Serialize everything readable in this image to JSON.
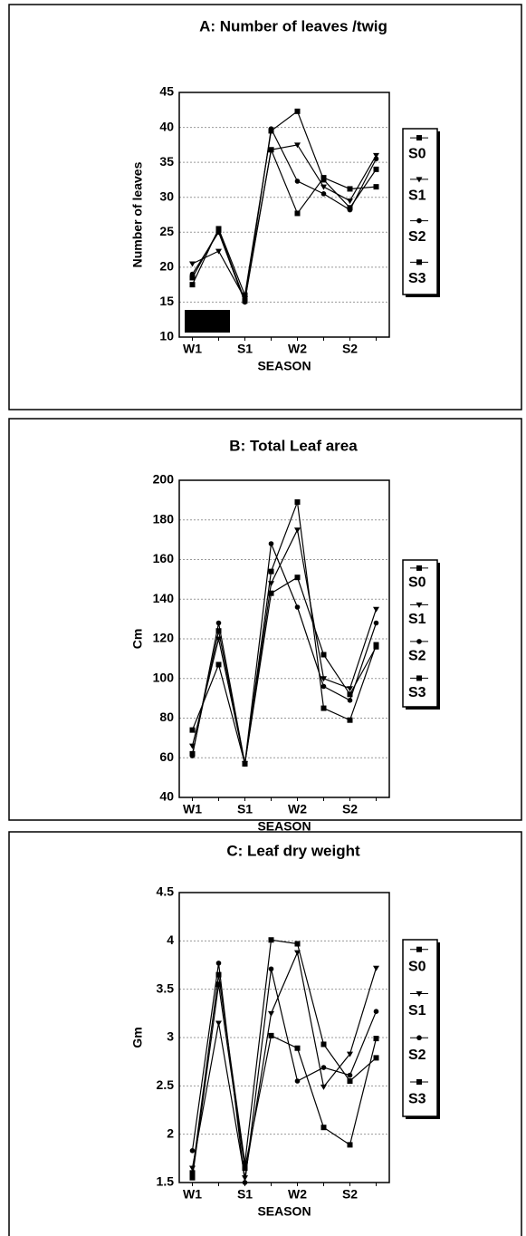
{
  "chart_data": [
    {
      "type": "line",
      "title": "A: Number  of  leaves /twig",
      "xlabel": "SEASON",
      "ylabel": "Number  of  leaves",
      "categories": [
        "W1",
        null,
        "S1",
        null,
        "W2",
        null,
        "S2",
        null
      ],
      "ylim": [
        10,
        45
      ],
      "yticks": [
        10,
        15,
        20,
        25,
        30,
        35,
        40,
        45
      ],
      "grid": true,
      "series": [
        {
          "name": "S0",
          "color": "#000000",
          "marker": "square",
          "values": [
            17.5,
            25.5,
            16,
            39.5,
            42.3,
            32.5,
            28.5,
            34
          ]
        },
        {
          "name": "S1",
          "color": "#000000",
          "marker": "triangle",
          "values": [
            20.5,
            22.3,
            15.5,
            36.8,
            37.5,
            31.5,
            29.5,
            36
          ]
        },
        {
          "name": "S2",
          "color": "#000000",
          "marker": "circle",
          "values": [
            19,
            25,
            15,
            39.8,
            32.3,
            30.5,
            28.2,
            35.5
          ]
        },
        {
          "name": "S3",
          "color": "#000000",
          "marker": "square",
          "values": [
            18.5,
            25.3,
            15.2,
            36.8,
            27.7,
            32.8,
            31.2,
            31.5
          ]
        }
      ]
    },
    {
      "type": "line",
      "title": "B: Total   Leaf  area",
      "xlabel": "SEASON",
      "ylabel": "Cm",
      "categories": [
        "W1",
        null,
        "S1",
        null,
        "W2",
        null,
        "S2",
        null
      ],
      "ylim": [
        40,
        200
      ],
      "yticks": [
        40,
        60,
        80,
        100,
        120,
        140,
        160,
        180,
        200
      ],
      "grid": true,
      "series": [
        {
          "name": "S0",
          "color": "#000000",
          "marker": "square",
          "values": [
            74,
            107,
            57,
            154,
            189,
            85,
            79,
            117
          ]
        },
        {
          "name": "S1",
          "color": "#000000",
          "marker": "triangle",
          "values": [
            66,
            120,
            57,
            148,
            175,
            100,
            95,
            135
          ]
        },
        {
          "name": "S2",
          "color": "#000000",
          "marker": "circle",
          "values": [
            61,
            128,
            57,
            168,
            136,
            96,
            89,
            128
          ]
        },
        {
          "name": "S3",
          "color": "#000000",
          "marker": "square",
          "values": [
            62,
            124,
            57,
            143,
            151,
            112,
            92,
            116
          ]
        }
      ]
    },
    {
      "type": "line",
      "title": "C: Leaf  dry   weight",
      "xlabel": "SEASON",
      "ylabel": "Gm",
      "categories": [
        "W1",
        null,
        "S1",
        null,
        "W2",
        null,
        "S2",
        null
      ],
      "ylim": [
        1.5,
        4.5
      ],
      "yticks": [
        1.5,
        2,
        2.5,
        3,
        3.5,
        4,
        4.5
      ],
      "grid": true,
      "series": [
        {
          "name": "S0",
          "color": "#000000",
          "marker": "square",
          "values": [
            1.55,
            3.55,
            1.65,
            3.02,
            2.89,
            2.07,
            1.89,
            2.99
          ]
        },
        {
          "name": "S1",
          "color": "#000000",
          "marker": "triangle",
          "values": [
            1.65,
            3.15,
            1.55,
            3.25,
            3.88,
            2.49,
            2.83,
            3.72
          ]
        },
        {
          "name": "S2",
          "color": "#000000",
          "marker": "circle",
          "values": [
            1.83,
            3.77,
            1.5,
            3.71,
            2.55,
            2.69,
            2.61,
            3.27
          ]
        },
        {
          "name": "S3",
          "color": "#000000",
          "marker": "square",
          "values": [
            1.6,
            3.65,
            1.7,
            4.01,
            3.97,
            2.93,
            2.55,
            2.79
          ]
        }
      ]
    }
  ]
}
